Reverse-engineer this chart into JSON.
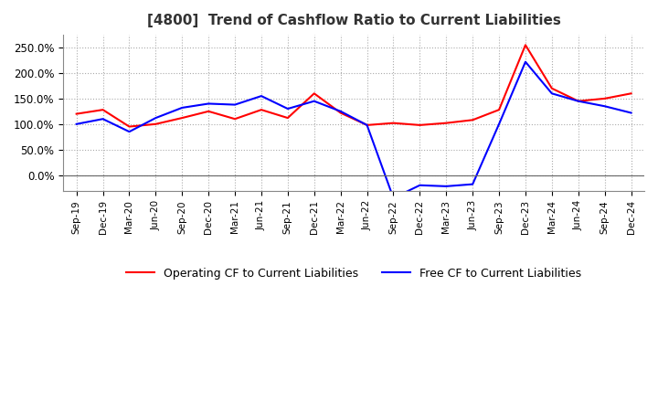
{
  "title": "[4800]  Trend of Cashflow Ratio to Current Liabilities",
  "x_labels": [
    "Sep-19",
    "Dec-19",
    "Mar-20",
    "Jun-20",
    "Sep-20",
    "Dec-20",
    "Mar-21",
    "Jun-21",
    "Sep-21",
    "Dec-21",
    "Mar-22",
    "Jun-22",
    "Sep-22",
    "Dec-22",
    "Mar-23",
    "Jun-23",
    "Sep-23",
    "Dec-23",
    "Mar-24",
    "Jun-24",
    "Sep-24",
    "Dec-24"
  ],
  "operating_cf": [
    1.2,
    1.28,
    0.95,
    1.0,
    1.12,
    1.25,
    1.1,
    1.28,
    1.12,
    1.6,
    1.22,
    0.98,
    1.02,
    0.98,
    1.02,
    1.08,
    1.28,
    2.55,
    1.7,
    1.45,
    1.5,
    1.6
  ],
  "free_cf": [
    1.0,
    1.1,
    0.85,
    1.12,
    1.32,
    1.4,
    1.38,
    1.55,
    1.3,
    1.45,
    1.25,
    0.98,
    -0.45,
    -0.2,
    -0.22,
    -0.18,
    1.0,
    2.22,
    1.6,
    1.45,
    1.35,
    1.22
  ],
  "operating_color": "#FF0000",
  "free_color": "#0000FF",
  "ylim_min": -0.32,
  "ylim_max": 2.75,
  "yticks": [
    0.0,
    0.5,
    1.0,
    1.5,
    2.0,
    2.5
  ],
  "ytick_labels": [
    "0.0%",
    "50.0%",
    "100.0%",
    "150.0%",
    "200.0%",
    "250.0%"
  ],
  "background_color": "#FFFFFF",
  "grid_color": "#AAAAAA",
  "legend_op": "Operating CF to Current Liabilities",
  "legend_free": "Free CF to Current Liabilities"
}
